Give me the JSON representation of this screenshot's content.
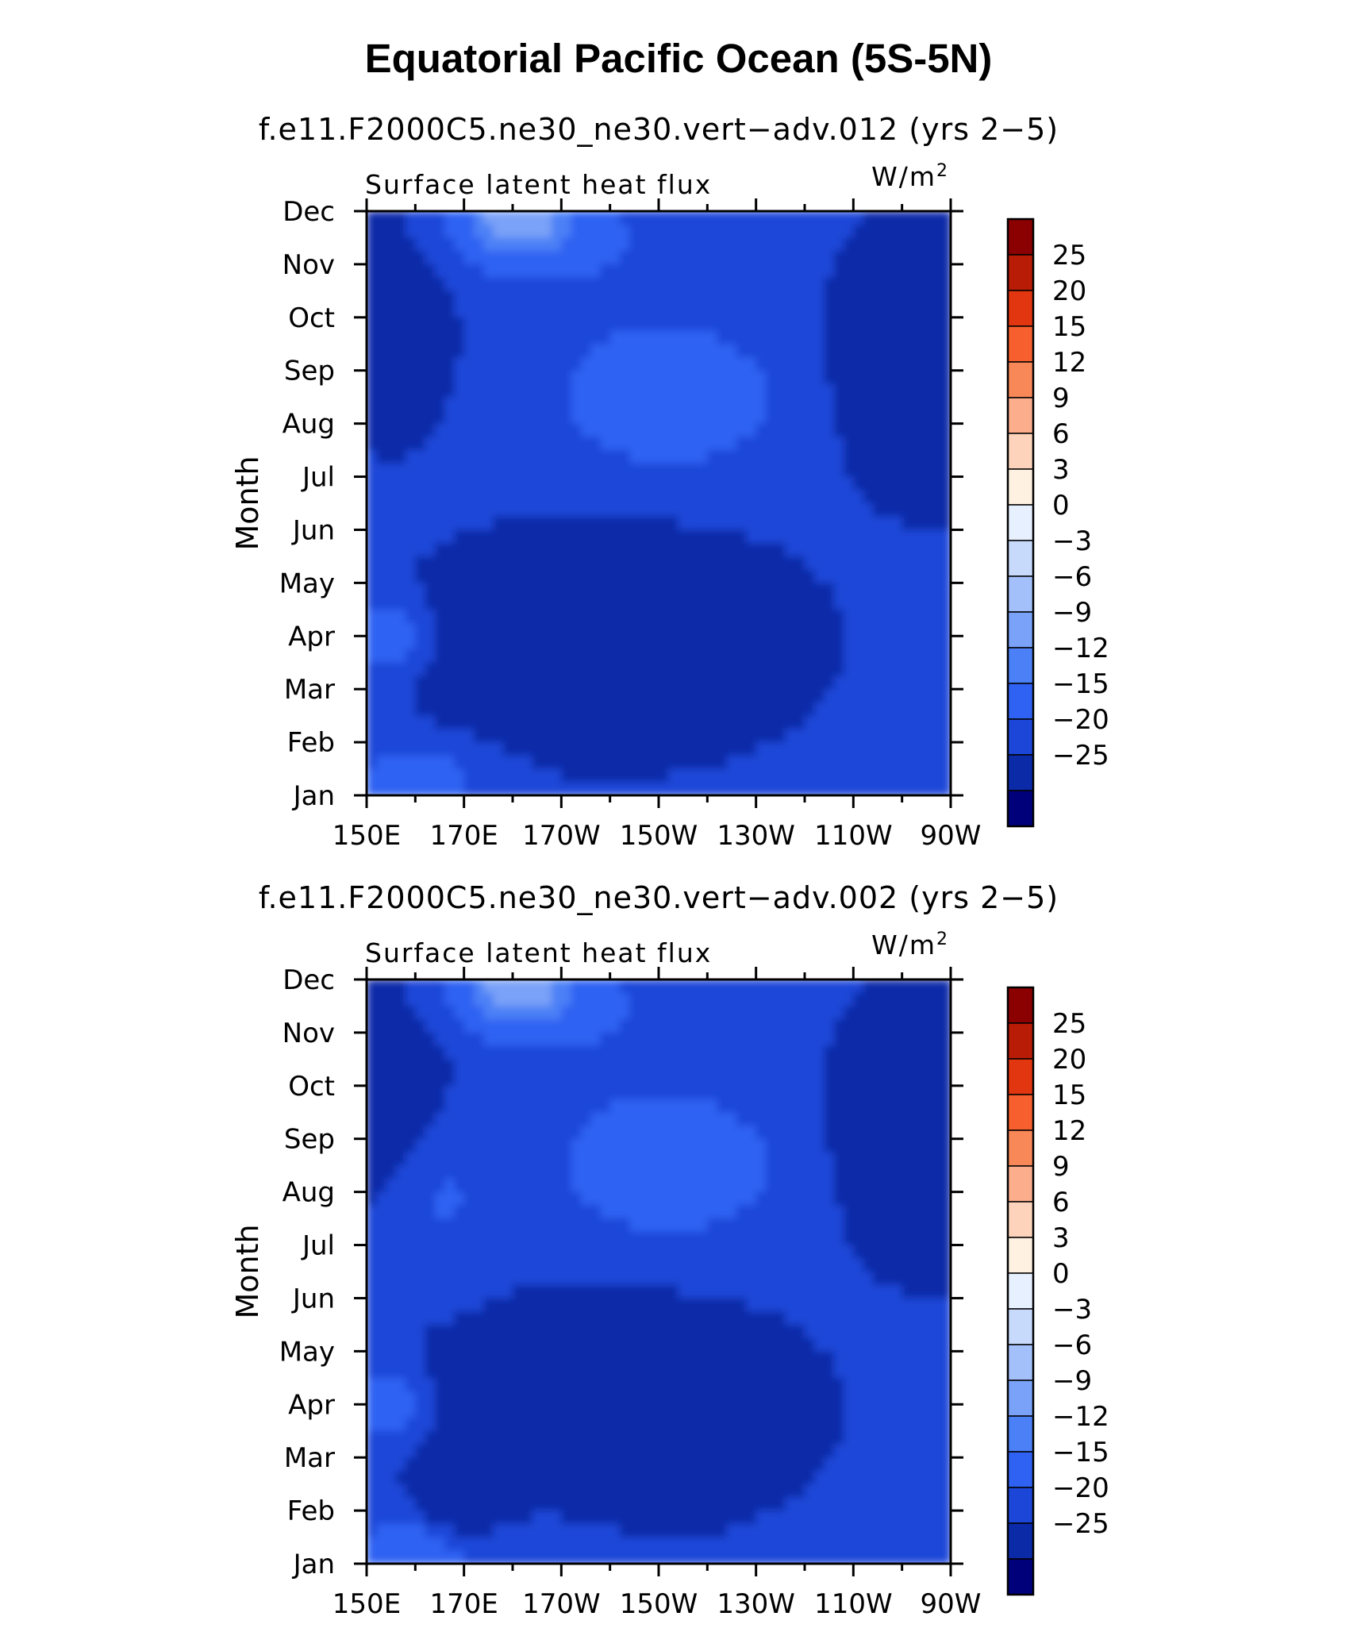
{
  "title": "Equatorial Pacific Ocean (5S-5N)",
  "colors": {
    "scale": [
      "#00007a",
      "#0a2aa8",
      "#1c46d8",
      "#2f62f2",
      "#4c80f6",
      "#7aa2f8",
      "#a4c0fa",
      "#c8dafc",
      "#e6f0fe",
      "#fff1e1",
      "#fdd4bb",
      "#fbad8c",
      "#f98858",
      "#f7602e",
      "#e23610",
      "#b81c06",
      "#8b0000"
    ],
    "axis": "#000000"
  },
  "chart_data": [
    {
      "type": "heatmap",
      "subtitle": "f.e11.F2000C5.ne30_ne30.vert−adv.012 (yrs 2−5)",
      "left_label": "Surface latent heat flux",
      "units_label": "W/m",
      "units_exponent": "2",
      "ylabel": "Month",
      "xlabel": "",
      "x_ticks": [
        "150E",
        "170E",
        "170W",
        "150W",
        "130W",
        "110W",
        "90W"
      ],
      "y_ticks": [
        "Jan",
        "Feb",
        "Mar",
        "Apr",
        "May",
        "Jun",
        "Jul",
        "Aug",
        "Sep",
        "Oct",
        "Nov",
        "Dec"
      ],
      "x_range_deg_east": [
        150,
        270
      ],
      "colorbar_labels": [
        "25",
        "20",
        "15",
        "12",
        "9",
        "6",
        "3",
        "0",
        "−3",
        "−6",
        "−9",
        "−12",
        "−15",
        "−20",
        "−25"
      ],
      "levels": [
        -25,
        -20,
        -15,
        -12,
        -9,
        -6,
        -3,
        0,
        3,
        6,
        9,
        12,
        15,
        20,
        25
      ],
      "variant": 0
    },
    {
      "type": "heatmap",
      "subtitle": "f.e11.F2000C5.ne30_ne30.vert−adv.002 (yrs 2−5)",
      "left_label": "Surface latent heat flux",
      "units_label": "W/m",
      "units_exponent": "2",
      "ylabel": "Month",
      "xlabel": "",
      "x_ticks": [
        "150E",
        "170E",
        "170W",
        "150W",
        "130W",
        "110W",
        "90W"
      ],
      "y_ticks": [
        "Jan",
        "Feb",
        "Mar",
        "Apr",
        "May",
        "Jun",
        "Jul",
        "Aug",
        "Sep",
        "Oct",
        "Nov",
        "Dec"
      ],
      "x_range_deg_east": [
        150,
        270
      ],
      "colorbar_labels": [
        "25",
        "20",
        "15",
        "12",
        "9",
        "6",
        "3",
        "0",
        "−3",
        "−6",
        "−9",
        "−12",
        "−15",
        "−20",
        "−25"
      ],
      "levels": [
        -25,
        -20,
        -15,
        -12,
        -9,
        -6,
        -3,
        0,
        3,
        6,
        9,
        12,
        15,
        20,
        25
      ],
      "variant": 1
    }
  ]
}
